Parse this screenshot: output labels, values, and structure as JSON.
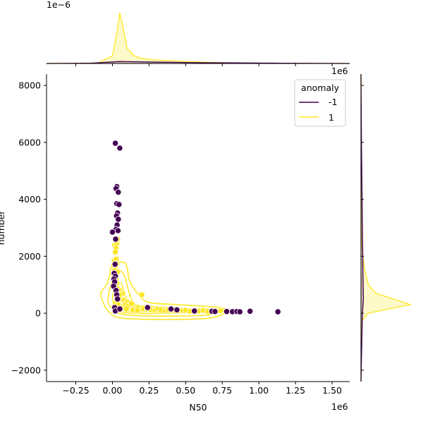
{
  "chart_data": {
    "type": "scatter",
    "title": "",
    "xlabel": "N50",
    "ylabel": "number",
    "xlim": [
      -450000,
      1620000
    ],
    "ylim": [
      -2400,
      8400
    ],
    "x_ticks": [
      -250000,
      0,
      250000,
      500000,
      750000,
      1000000,
      1250000,
      1500000
    ],
    "x_tick_labels": [
      "−0.25",
      "0.00",
      "0.25",
      "0.50",
      "0.75",
      "1.00",
      "1.25",
      "1.50"
    ],
    "y_ticks": [
      -2000,
      0,
      2000,
      4000,
      6000,
      8000
    ],
    "y_tick_labels": [
      "−2000",
      "0",
      "2000",
      "4000",
      "6000",
      "8000"
    ],
    "x_offset_text": "1e6",
    "top_marginal_offset_text": "1e−6",
    "right_marginal_offset_text": "1e6",
    "legend": {
      "title": "anomaly",
      "placement": "top-right",
      "entries": [
        {
          "label": "-1",
          "color": "#440154"
        },
        {
          "label": "1",
          "color": "#fde725"
        }
      ]
    },
    "series": [
      {
        "name": "-1",
        "color": "#440154",
        "points": [
          [
            20000,
            5970
          ],
          [
            50000,
            5800
          ],
          [
            30000,
            4450
          ],
          [
            25000,
            4380
          ],
          [
            40000,
            4250
          ],
          [
            30000,
            3850
          ],
          [
            45000,
            3820
          ],
          [
            35000,
            3520
          ],
          [
            28000,
            3420
          ],
          [
            40000,
            3300
          ],
          [
            32000,
            3100
          ],
          [
            25000,
            2950
          ],
          [
            38000,
            2900
          ],
          [
            0,
            2850
          ],
          [
            22000,
            2600
          ],
          [
            18000,
            1720
          ],
          [
            12000,
            1400
          ],
          [
            20000,
            1300
          ],
          [
            10000,
            1200
          ],
          [
            15000,
            1100
          ],
          [
            8000,
            950
          ],
          [
            25000,
            800
          ],
          [
            30000,
            650
          ],
          [
            35000,
            500
          ],
          [
            15000,
            200
          ],
          [
            20000,
            80
          ],
          [
            50000,
            150
          ],
          [
            240000,
            200
          ],
          [
            400000,
            150
          ],
          [
            440000,
            120
          ],
          [
            560000,
            80
          ],
          [
            680000,
            70
          ],
          [
            700000,
            60
          ],
          [
            780000,
            60
          ],
          [
            820000,
            55
          ],
          [
            850000,
            60
          ],
          [
            870000,
            50
          ],
          [
            940000,
            70
          ],
          [
            1130000,
            50
          ]
        ]
      },
      {
        "name": "1",
        "color": "#fde725",
        "points": [
          [
            15000,
            2400
          ],
          [
            30000,
            2450
          ],
          [
            25000,
            2300
          ],
          [
            20000,
            2150
          ],
          [
            35000,
            2600
          ],
          [
            12000,
            1850
          ],
          [
            25000,
            1900
          ],
          [
            30000,
            1750
          ],
          [
            8000,
            1650
          ],
          [
            20000,
            1600
          ],
          [
            15000,
            1500
          ],
          [
            35000,
            1450
          ],
          [
            10000,
            1300
          ],
          [
            25000,
            1200
          ],
          [
            30000,
            1050
          ],
          [
            5000,
            1000
          ],
          [
            18000,
            900
          ],
          [
            40000,
            850
          ],
          [
            55000,
            780
          ],
          [
            70000,
            700
          ],
          [
            45000,
            620
          ],
          [
            30000,
            550
          ],
          [
            60000,
            500
          ],
          [
            80000,
            450
          ],
          [
            100000,
            400
          ],
          [
            20000,
            350
          ],
          [
            40000,
            300
          ],
          [
            75000,
            260
          ],
          [
            120000,
            220
          ],
          [
            150000,
            180
          ],
          [
            175000,
            200
          ],
          [
            200000,
            650
          ],
          [
            210000,
            160
          ],
          [
            240000,
            140
          ],
          [
            260000,
            120
          ],
          [
            290000,
            100
          ],
          [
            310000,
            150
          ],
          [
            330000,
            110
          ],
          [
            360000,
            90
          ],
          [
            380000,
            130
          ],
          [
            410000,
            100
          ],
          [
            450000,
            80
          ],
          [
            480000,
            90
          ],
          [
            500000,
            100
          ],
          [
            530000,
            70
          ],
          [
            560000,
            90
          ],
          [
            590000,
            80
          ],
          [
            620000,
            100
          ],
          [
            650000,
            70
          ],
          [
            680000,
            80
          ],
          [
            710000,
            60
          ],
          [
            740000,
            90
          ],
          [
            90000,
            300
          ],
          [
            110000,
            260
          ],
          [
            130000,
            340
          ],
          [
            60000,
            180
          ],
          [
            95000,
            150
          ],
          [
            140000,
            120
          ],
          [
            170000,
            100
          ],
          [
            50000,
            650
          ]
        ]
      }
    ],
    "kde_contours": {
      "series": "1",
      "color": "#fde725",
      "levels": [
        [
          [
            -40000,
            150
          ],
          [
            20000,
            -120
          ],
          [
            150000,
            -200
          ],
          [
            400000,
            -220
          ],
          [
            650000,
            -180
          ],
          [
            760000,
            -20
          ],
          [
            780000,
            120
          ],
          [
            700000,
            220
          ],
          [
            450000,
            300
          ],
          [
            250000,
            380
          ],
          [
            180000,
            650
          ],
          [
            120000,
            1100
          ],
          [
            100000,
            1600
          ],
          [
            80000,
            1780
          ],
          [
            0,
            1750
          ],
          [
            -20000,
            1300
          ],
          [
            -40000,
            1000
          ],
          [
            -80000,
            700
          ],
          [
            -60000,
            350
          ]
        ],
        [
          [
            0,
            150
          ],
          [
            60000,
            -30
          ],
          [
            200000,
            -90
          ],
          [
            450000,
            -100
          ],
          [
            650000,
            -60
          ],
          [
            700000,
            60
          ],
          [
            600000,
            130
          ],
          [
            400000,
            200
          ],
          [
            250000,
            250
          ],
          [
            150000,
            330
          ],
          [
            110000,
            800
          ],
          [
            80000,
            1350
          ],
          [
            40000,
            1500
          ],
          [
            0,
            1200
          ],
          [
            -20000,
            800
          ],
          [
            -30000,
            400
          ]
        ],
        [
          [
            20000,
            150
          ],
          [
            80000,
            30
          ],
          [
            250000,
            -10
          ],
          [
            450000,
            20
          ],
          [
            380000,
            120
          ],
          [
            250000,
            160
          ],
          [
            150000,
            200
          ],
          [
            90000,
            600
          ],
          [
            60000,
            1050
          ],
          [
            20000,
            900
          ],
          [
            0,
            500
          ]
        ],
        [
          [
            40000,
            180
          ],
          [
            100000,
            80
          ],
          [
            220000,
            60
          ],
          [
            200000,
            130
          ],
          [
            110000,
            200
          ],
          [
            70000,
            600
          ],
          [
            40000,
            700
          ],
          [
            20000,
            400
          ]
        ],
        [
          [
            50000,
            200
          ],
          [
            90000,
            140
          ],
          [
            140000,
            140
          ],
          [
            90000,
            220
          ],
          [
            60000,
            450
          ],
          [
            40000,
            350
          ]
        ]
      ]
    },
    "marginal_x": {
      "series": [
        {
          "name": "1",
          "color": "#fde725",
          "points": [
            [
              -450000,
              0
            ],
            [
              -100000,
              0.01
            ],
            [
              0,
              0.15
            ],
            [
              30000,
              0.6
            ],
            [
              50000,
              1.0
            ],
            [
              70000,
              0.75
            ],
            [
              100000,
              0.3
            ],
            [
              150000,
              0.15
            ],
            [
              200000,
              0.1
            ],
            [
              300000,
              0.07
            ],
            [
              500000,
              0.04
            ],
            [
              700000,
              0.02
            ],
            [
              1000000,
              0.005
            ],
            [
              1620000,
              0
            ]
          ]
        },
        {
          "name": "-1",
          "color": "#440154",
          "points": [
            [
              -450000,
              0
            ],
            [
              -150000,
              0.005
            ],
            [
              0,
              0.03
            ],
            [
              50000,
              0.04
            ],
            [
              150000,
              0.035
            ],
            [
              350000,
              0.025
            ],
            [
              600000,
              0.015
            ],
            [
              850000,
              0.012
            ],
            [
              1150000,
              0.005
            ],
            [
              1620000,
              0
            ]
          ]
        }
      ]
    },
    "marginal_y": {
      "series": [
        {
          "name": "1",
          "color": "#fde725",
          "points": [
            [
              -2400,
              0
            ],
            [
              -300,
              0.005
            ],
            [
              0,
              0.15
            ],
            [
              150,
              0.55
            ],
            [
              300,
              1.0
            ],
            [
              450,
              0.75
            ],
            [
              700,
              0.3
            ],
            [
              1000,
              0.15
            ],
            [
              1500,
              0.08
            ],
            [
              2000,
              0.04
            ],
            [
              2500,
              0.01
            ],
            [
              8400,
              0
            ]
          ]
        },
        {
          "name": "-1",
          "color": "#440154",
          "points": [
            [
              -2400,
              0
            ],
            [
              0,
              0.03
            ],
            [
              500,
              0.05
            ],
            [
              1500,
              0.04
            ],
            [
              3000,
              0.03
            ],
            [
              4500,
              0.02
            ],
            [
              6000,
              0.01
            ],
            [
              8400,
              0
            ]
          ]
        }
      ]
    }
  }
}
